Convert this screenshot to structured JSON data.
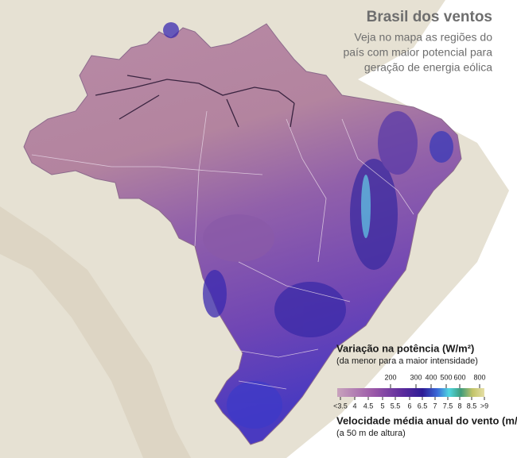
{
  "header": {
    "title": "Brasil dos ventos",
    "subtitle": [
      "Veja no mapa as regiões do",
      "país com maior potencial para",
      "geração de energia eólica"
    ]
  },
  "legend": {
    "power_title": "Variação na potência (W/m²)",
    "power_subtitle": "(da menor para a maior intensidade)",
    "power_labels": [
      200,
      300,
      400,
      500,
      600,
      800
    ],
    "speed_labels": [
      "<3.5",
      4,
      4.5,
      5,
      5.5,
      6,
      6.5,
      7,
      7.5,
      8,
      8.5,
      ">9"
    ],
    "speed_title": "Velocidade média anual do vento (m/s)",
    "speed_subtitle": "(a 50 m de altura)"
  }
}
